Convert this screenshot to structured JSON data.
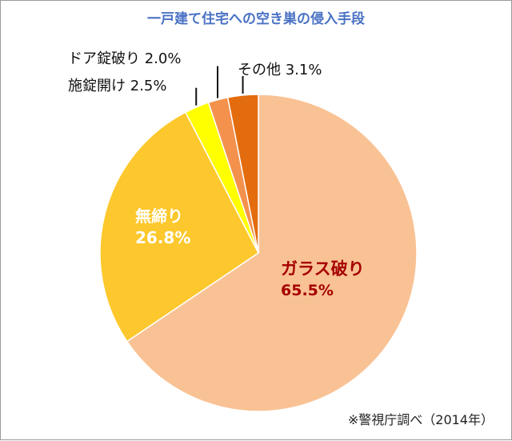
{
  "chart_data": {
    "type": "pie",
    "title": "一戸建て住宅への空き巣の侵入手段",
    "source": "※警視庁調べ（2014年）",
    "slices": [
      {
        "name": "ガラス破り",
        "value": 65.5,
        "value_label": "65.5%",
        "color": "#f9c294"
      },
      {
        "name": "無締り",
        "value": 26.8,
        "value_label": "26.8%",
        "color": "#fdc82d"
      },
      {
        "name": "施錠開け",
        "value": 2.5,
        "value_label": "2.5%",
        "color": "#ffff00"
      },
      {
        "name": "ドア錠破り",
        "value": 2.0,
        "value_label": "2.0%",
        "color": "#f4914d"
      },
      {
        "name": "その他",
        "value": 3.1,
        "value_label": "3.1%",
        "color": "#e36c0e"
      }
    ],
    "label_colors": {
      "glass": "#a60000",
      "inside": "#ffffff",
      "outside": "#111111"
    }
  }
}
